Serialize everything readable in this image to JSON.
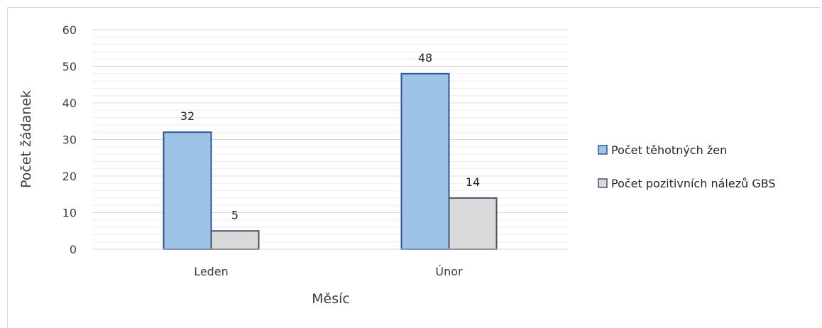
{
  "chart_data": {
    "type": "bar",
    "title": "",
    "xlabel": "Měsíc",
    "ylabel": "Počet žádanek",
    "categories": [
      "Leden",
      "Únor"
    ],
    "series": [
      {
        "name": "Počet těhotných žen",
        "values": [
          32,
          48
        ],
        "color": "#9dc3e6",
        "stroke": "#2f5597"
      },
      {
        "name": "Počet pozitivních nálezů GBS",
        "values": [
          5,
          14
        ],
        "color": "#d9d9d9",
        "stroke": "#44546a"
      }
    ],
    "ylim": [
      0,
      60
    ],
    "yticks": [
      0,
      10,
      20,
      30,
      40,
      50,
      60
    ],
    "ytick_labels": [
      "0",
      "10",
      "20",
      "30",
      "40",
      "50",
      "60"
    ],
    "data_labels": [
      [
        "32",
        "48"
      ],
      [
        "5",
        "14"
      ]
    ],
    "grid": true,
    "legend_position": "right"
  }
}
